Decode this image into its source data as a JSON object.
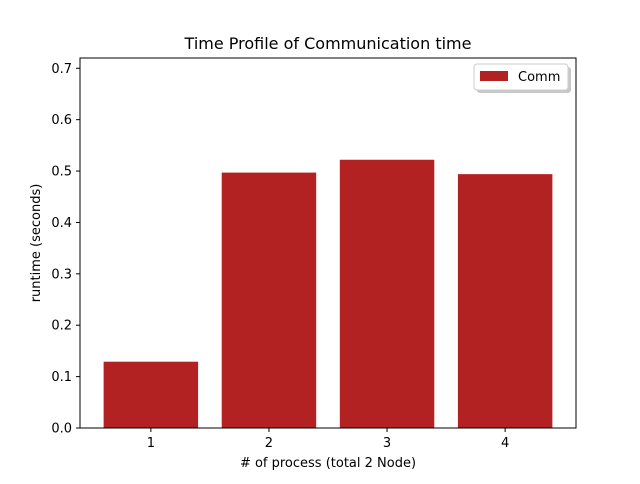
{
  "chart_data": {
    "type": "bar",
    "title": "Time Profile of Communication time",
    "xlabel": "# of process (total 2 Node)",
    "ylabel": "runtime (seconds)",
    "categories": [
      "1",
      "2",
      "3",
      "4"
    ],
    "series": [
      {
        "name": "Comm",
        "values": [
          0.129,
          0.497,
          0.522,
          0.494
        ],
        "color": "#b22222"
      }
    ],
    "ylim": [
      0,
      0.72
    ],
    "yticks": [
      0.0,
      0.1,
      0.2,
      0.3,
      0.4,
      0.5,
      0.6,
      0.7
    ],
    "ytick_labels": [
      "0.0",
      "0.1",
      "0.2",
      "0.3",
      "0.4",
      "0.5",
      "0.6",
      "0.7"
    ],
    "grid": false,
    "legend_position": "top-right"
  }
}
